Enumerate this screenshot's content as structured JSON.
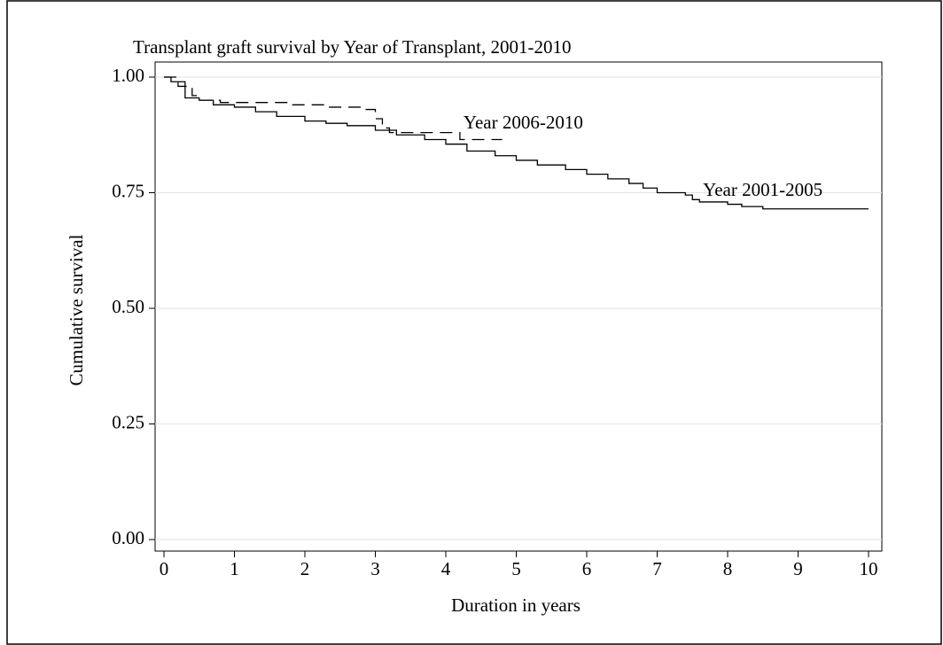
{
  "chart_data": {
    "type": "step",
    "title": "Transplant graft survival by Year of Transplant, 2001-2010",
    "x_label": "Duration in years",
    "y_label": "Cumulative survival",
    "xlim": [
      0,
      10
    ],
    "xticks": [
      0,
      1,
      2,
      3,
      4,
      5,
      6,
      7,
      8,
      9,
      10
    ],
    "ylim": [
      0,
      1
    ],
    "yticks": [
      {
        "value": 0,
        "label": "0.00"
      },
      {
        "value": 0.25,
        "label": "0.25"
      },
      {
        "value": 0.5,
        "label": "0.50"
      },
      {
        "value": 0.75,
        "label": "0.75"
      },
      {
        "value": 1,
        "label": "1.00"
      }
    ],
    "grid": true,
    "series": [
      {
        "name": "Year 2001-2005",
        "color": "#000000",
        "dash": false,
        "x": [
          0,
          0.1,
          0.3,
          0.5,
          0.7,
          1.0,
          1.3,
          1.6,
          2.0,
          2.3,
          2.6,
          3.0,
          3.3,
          3.7,
          4.0,
          4.3,
          4.7,
          5.0,
          5.3,
          5.7,
          6.0,
          6.3,
          6.6,
          6.8,
          7.0,
          7.4,
          7.5,
          7.6,
          8.0,
          8.2,
          8.5,
          10
        ],
        "values": [
          1.0,
          0.99,
          0.955,
          0.95,
          0.94,
          0.935,
          0.925,
          0.915,
          0.905,
          0.9,
          0.895,
          0.885,
          0.875,
          0.865,
          0.855,
          0.84,
          0.83,
          0.82,
          0.81,
          0.8,
          0.79,
          0.78,
          0.77,
          0.76,
          0.75,
          0.745,
          0.735,
          0.73,
          0.725,
          0.72,
          0.715,
          0.715
        ]
      },
      {
        "name": "Year 2006-2010",
        "color": "#000000",
        "dash": true,
        "x": [
          0,
          0.2,
          0.4,
          0.5,
          0.8,
          1.8,
          2.3,
          2.8,
          3.0,
          3.1,
          3.2,
          4.2,
          4.8
        ],
        "values": [
          1.0,
          0.98,
          0.96,
          0.95,
          0.945,
          0.94,
          0.935,
          0.93,
          0.91,
          0.89,
          0.88,
          0.865,
          0.865
        ]
      }
    ]
  }
}
